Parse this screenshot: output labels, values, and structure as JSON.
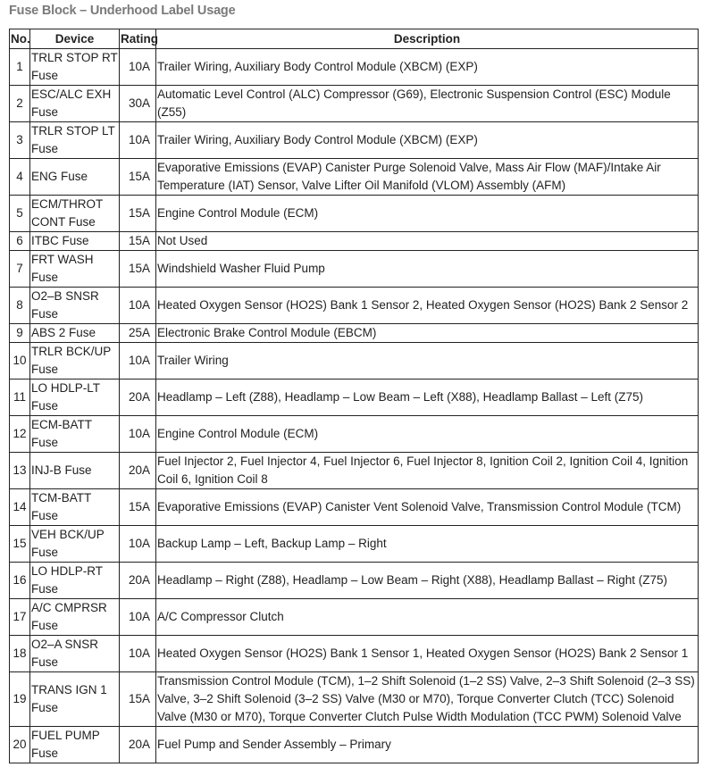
{
  "title": "Fuse Block – Underhood Label Usage",
  "table": {
    "headers": {
      "no": "No.",
      "device": "Device",
      "rating": "Rating",
      "description": "Description"
    },
    "rows": [
      {
        "no": "1",
        "device": "TRLR STOP RT Fuse",
        "rating": "10A",
        "description": "Trailer Wiring, Auxiliary Body Control Module (XBCM) (EXP)"
      },
      {
        "no": "2",
        "device": "ESC/ALC EXH Fuse",
        "rating": "30A",
        "description": "Automatic Level Control (ALC) Compressor (G69), Electronic Suspension Control (ESC) Module (Z55)"
      },
      {
        "no": "3",
        "device": "TRLR STOP LT Fuse",
        "rating": "10A",
        "description": "Trailer Wiring, Auxiliary Body Control Module (XBCM) (EXP)"
      },
      {
        "no": "4",
        "device": "ENG Fuse",
        "rating": "15A",
        "description": "Evaporative Emissions (EVAP) Canister Purge Solenoid Valve, Mass Air Flow (MAF)/Intake Air Temperature (IAT) Sensor, Valve Lifter Oil Manifold (VLOM) Assembly (AFM)"
      },
      {
        "no": "5",
        "device": "ECM/THROT CONT Fuse",
        "rating": "15A",
        "description": "Engine Control Module (ECM)"
      },
      {
        "no": "6",
        "device": "ITBC Fuse",
        "rating": "15A",
        "description": "Not Used"
      },
      {
        "no": "7",
        "device": "FRT WASH Fuse",
        "rating": "15A",
        "description": "Windshield Washer Fluid Pump"
      },
      {
        "no": "8",
        "device": "O2–B SNSR Fuse",
        "rating": "10A",
        "description": "Heated Oxygen Sensor (HO2S) Bank 1 Sensor 2, Heated Oxygen Sensor (HO2S) Bank 2 Sensor 2"
      },
      {
        "no": "9",
        "device": "ABS 2 Fuse",
        "rating": "25A",
        "description": "Electronic Brake Control Module (EBCM)"
      },
      {
        "no": "10",
        "device": "TRLR BCK/UP Fuse",
        "rating": "10A",
        "description": "Trailer Wiring"
      },
      {
        "no": "11",
        "device": "LO HDLP-LT Fuse",
        "rating": "20A",
        "description": "Headlamp – Left (Z88), Headlamp – Low Beam – Left (X88), Headlamp Ballast – Left (Z75)"
      },
      {
        "no": "12",
        "device": "ECM-BATT Fuse",
        "rating": "10A",
        "description": "Engine Control Module (ECM)"
      },
      {
        "no": "13",
        "device": "INJ-B Fuse",
        "rating": "20A",
        "description": "Fuel Injector 2, Fuel Injector 4, Fuel Injector 6, Fuel Injector 8, Ignition Coil 2, Ignition Coil 4, Ignition Coil 6, Ignition Coil 8"
      },
      {
        "no": "14",
        "device": "TCM-BATT Fuse",
        "rating": "15A",
        "description": "Evaporative Emissions (EVAP) Canister Vent Solenoid Valve, Transmission Control Module (TCM)"
      },
      {
        "no": "15",
        "device": "VEH BCK/UP Fuse",
        "rating": "10A",
        "description": "Backup Lamp – Left, Backup Lamp – Right"
      },
      {
        "no": "16",
        "device": "LO HDLP-RT Fuse",
        "rating": "20A",
        "description": "Headlamp – Right (Z88), Headlamp – Low Beam – Right (X88), Headlamp Ballast – Right (Z75)"
      },
      {
        "no": "17",
        "device": "A/C CMPRSR Fuse",
        "rating": "10A",
        "description": "A/C Compressor Clutch"
      },
      {
        "no": "18",
        "device": "O2–A SNSR Fuse",
        "rating": "10A",
        "description": "Heated Oxygen Sensor (HO2S) Bank 1 Sensor 1, Heated Oxygen Sensor (HO2S) Bank 2 Sensor 1"
      },
      {
        "no": "19",
        "device": "TRANS IGN 1 Fuse",
        "rating": "15A",
        "description": "Transmission Control Module (TCM), 1–2 Shift Solenoid (1–2 SS) Valve, 2–3 Shift Solenoid (2–3 SS) Valve, 3–2 Shift Solenoid (3–2 SS) Valve (M30 or M70), Torque Converter Clutch (TCC) Solenoid Valve (M30 or M70), Torque Converter Clutch Pulse Width Modulation (TCC PWM) Solenoid Valve"
      },
      {
        "no": "20",
        "device": "FUEL PUMP Fuse",
        "rating": "20A",
        "description": "Fuel Pump and Sender Assembly – Primary"
      }
    ]
  }
}
